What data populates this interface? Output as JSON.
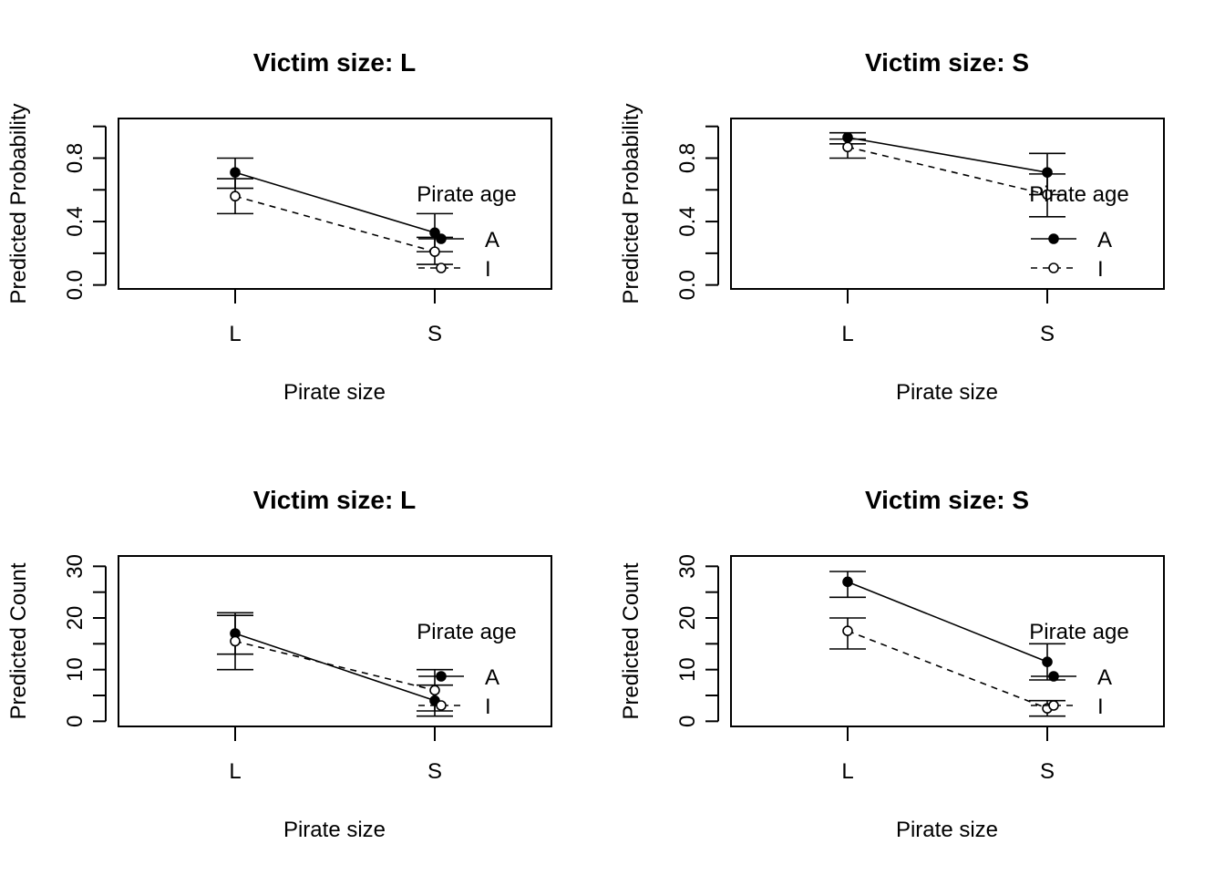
{
  "chart_data": [
    {
      "type": "line",
      "title": "Victim size: L",
      "xlabel": "Pirate size",
      "ylabel": "Predicted Probability",
      "categories": [
        "L",
        "S"
      ],
      "ylim": [
        -0.025,
        1.05
      ],
      "yticks": [
        0.0,
        0.4,
        0.8
      ],
      "yticks_minor": [
        0.0,
        0.2,
        0.4,
        0.6,
        0.8,
        1.0
      ],
      "legend": {
        "title": "Pirate age",
        "position": "right"
      },
      "series": [
        {
          "name": "A",
          "values": [
            0.71,
            0.33
          ],
          "lower": [
            0.61,
            0.21
          ],
          "upper": [
            0.8,
            0.45
          ],
          "line": "solid",
          "marker": "filled-circle"
        },
        {
          "name": "I",
          "values": [
            0.56,
            0.21
          ],
          "lower": [
            0.45,
            0.13
          ],
          "upper": [
            0.67,
            0.3
          ],
          "line": "dashed",
          "marker": "open-circle"
        }
      ]
    },
    {
      "type": "line",
      "title": "Victim size: S",
      "xlabel": "Pirate size",
      "ylabel": "Predicted Probability",
      "categories": [
        "L",
        "S"
      ],
      "ylim": [
        -0.025,
        1.05
      ],
      "yticks": [
        0.0,
        0.4,
        0.8
      ],
      "yticks_minor": [
        0.0,
        0.2,
        0.4,
        0.6,
        0.8,
        1.0
      ],
      "legend": {
        "title": "Pirate age",
        "position": "right"
      },
      "series": [
        {
          "name": "A",
          "values": [
            0.93,
            0.71
          ],
          "lower": [
            0.89,
            0.57
          ],
          "upper": [
            0.96,
            0.83
          ],
          "line": "solid",
          "marker": "filled-circle"
        },
        {
          "name": "I",
          "values": [
            0.87,
            0.57
          ],
          "lower": [
            0.8,
            0.43
          ],
          "upper": [
            0.92,
            0.7
          ],
          "line": "dashed",
          "marker": "open-circle"
        }
      ]
    },
    {
      "type": "line",
      "title": "Victim size:  L",
      "xlabel": "Pirate size",
      "ylabel": "Predicted Count",
      "categories": [
        "L",
        "S"
      ],
      "ylim": [
        -1,
        32
      ],
      "yticks": [
        0,
        10,
        20,
        30
      ],
      "yticks_minor": [
        0,
        5,
        10,
        15,
        20,
        25,
        30
      ],
      "legend": {
        "title": "Pirate age",
        "position": "right"
      },
      "series": [
        {
          "name": "A",
          "values": [
            17.0,
            4.0
          ],
          "lower": [
            13.0,
            1.0
          ],
          "upper": [
            21.0,
            7.0
          ],
          "line": "solid",
          "marker": "filled-circle"
        },
        {
          "name": "I",
          "values": [
            15.5,
            6.0
          ],
          "lower": [
            10.0,
            2.0
          ],
          "upper": [
            20.5,
            10.0
          ],
          "line": "dashed",
          "marker": "open-circle"
        }
      ]
    },
    {
      "type": "line",
      "title": "Victim size:  S",
      "xlabel": "Pirate size",
      "ylabel": "Predicted Count",
      "categories": [
        "L",
        "S"
      ],
      "ylim": [
        -1,
        32
      ],
      "yticks": [
        0,
        10,
        20,
        30
      ],
      "yticks_minor": [
        0,
        5,
        10,
        15,
        20,
        25,
        30
      ],
      "legend": {
        "title": "Pirate age",
        "position": "right"
      },
      "series": [
        {
          "name": "A",
          "values": [
            27.0,
            11.5
          ],
          "lower": [
            24.0,
            8.0
          ],
          "upper": [
            29.0,
            15.0
          ],
          "line": "solid",
          "marker": "filled-circle"
        },
        {
          "name": "I",
          "values": [
            17.5,
            2.5
          ],
          "lower": [
            14.0,
            1.0
          ],
          "upper": [
            20.0,
            4.0
          ],
          "line": "dashed",
          "marker": "open-circle"
        }
      ]
    }
  ]
}
